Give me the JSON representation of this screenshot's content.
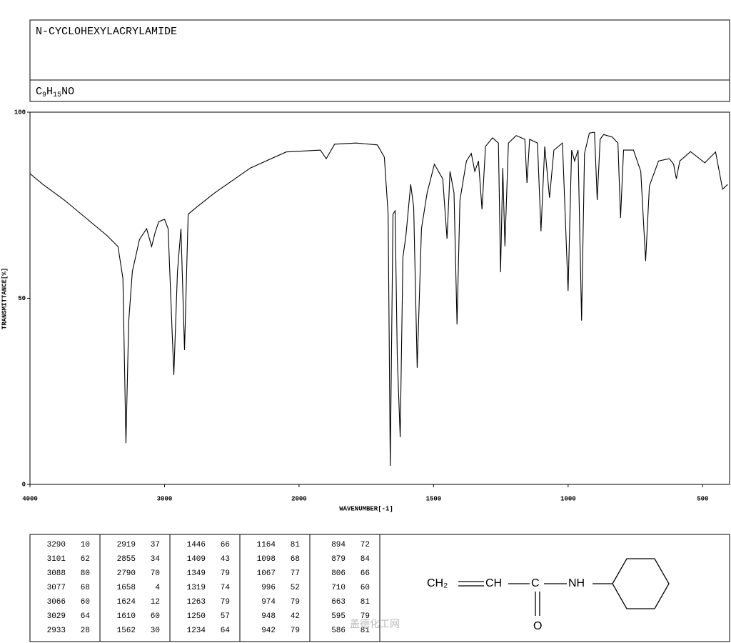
{
  "header": {
    "name": "N-CYCLOHEXYLACRYLAMIDE",
    "formula": [
      "C",
      "9",
      "H",
      "15",
      "NO"
    ]
  },
  "chart_data": {
    "type": "line",
    "x_label": "WAVENUMBER[-1]",
    "y_label": "TRANSMITTANCE[%]",
    "xlim": [
      4000,
      400
    ],
    "ylim": [
      0,
      100
    ],
    "xticks": [
      4000,
      3000,
      2000,
      1500,
      1000,
      500
    ],
    "yticks": [
      0,
      50,
      100
    ],
    "color": "#000000",
    "x": [
      4000,
      3904,
      3745,
      3585,
      3426,
      3346,
      3309,
      3287,
      3266,
      3239,
      3186,
      3133,
      3096,
      3069,
      3043,
      3000,
      2973,
      2931,
      2904,
      2878,
      2851,
      2824,
      2761,
      2628,
      2362,
      2096,
      1921,
      1899,
      1868,
      1788,
      1709,
      1683,
      1669,
      1661,
      1651,
      1643,
      1635,
      1624,
      1614,
      1603,
      1585,
      1574,
      1561,
      1545,
      1524,
      1497,
      1466,
      1450,
      1439,
      1424,
      1413,
      1402,
      1378,
      1360,
      1347,
      1333,
      1320,
      1307,
      1281,
      1259,
      1251,
      1243,
      1235,
      1222,
      1193,
      1161,
      1153,
      1143,
      1114,
      1101,
      1087,
      1069,
      1053,
      1021,
      1000,
      987,
      976,
      963,
      950,
      939,
      921,
      902,
      892,
      881,
      868,
      836,
      815,
      805,
      794,
      757,
      730,
      712,
      698,
      664,
      624,
      608,
      598,
      585,
      545,
      492,
      452,
      426,
      407
    ],
    "values": [
      83.5,
      80.6,
      76.4,
      71.6,
      66.8,
      63.9,
      55.3,
      11.1,
      43.8,
      57.2,
      65.8,
      68.7,
      63.9,
      67.8,
      70.6,
      71.2,
      68.7,
      29.4,
      57.2,
      68.7,
      36.1,
      72.6,
      74.5,
      78.3,
      85.0,
      89.3,
      89.8,
      87.5,
      91.4,
      91.7,
      91.2,
      87.9,
      72.6,
      5.0,
      72.6,
      73.5,
      34.2,
      12.7,
      61.0,
      66.8,
      80.6,
      74.5,
      31.3,
      68.7,
      78.3,
      86.0,
      82.1,
      66.0,
      84.1,
      78.3,
      43.0,
      76.4,
      86.9,
      88.9,
      84.1,
      86.9,
      73.9,
      90.8,
      93.1,
      91.7,
      57.0,
      85.0,
      64.0,
      91.7,
      93.7,
      92.7,
      81.0,
      92.7,
      91.7,
      68.0,
      90.8,
      77.0,
      89.8,
      91.7,
      52.0,
      89.8,
      86.9,
      89.8,
      44.0,
      88.9,
      94.4,
      94.6,
      76.4,
      92.7,
      94.0,
      93.3,
      91.7,
      71.6,
      89.8,
      89.8,
      84.1,
      60.0,
      80.2,
      86.9,
      87.5,
      86.0,
      82.1,
      86.9,
      89.4,
      86.4,
      89.3,
      79.3,
      80.6
    ]
  },
  "peak_table": [
    [
      [
        "3290",
        "10"
      ],
      [
        "3101",
        "62"
      ],
      [
        "3088",
        "80"
      ],
      [
        "3077",
        "68"
      ],
      [
        "3066",
        "60"
      ],
      [
        "3029",
        "64"
      ],
      [
        "2933",
        "28"
      ]
    ],
    [
      [
        "2919",
        "37"
      ],
      [
        "2855",
        "34"
      ],
      [
        "2790",
        "70"
      ],
      [
        "1658",
        "4"
      ],
      [
        "1624",
        "12"
      ],
      [
        "1610",
        "60"
      ],
      [
        "1562",
        "30"
      ]
    ],
    [
      [
        "1446",
        "66"
      ],
      [
        "1409",
        "43"
      ],
      [
        "1349",
        "79"
      ],
      [
        "1319",
        "74"
      ],
      [
        "1263",
        "79"
      ],
      [
        "1250",
        "57"
      ],
      [
        "1234",
        "64"
      ]
    ],
    [
      [
        "1164",
        "81"
      ],
      [
        "1098",
        "68"
      ],
      [
        "1067",
        "77"
      ],
      [
        "996",
        "52"
      ],
      [
        "974",
        "79"
      ],
      [
        "948",
        "42"
      ],
      [
        "942",
        "79"
      ]
    ],
    [
      [
        "894",
        "72"
      ],
      [
        "879",
        "84"
      ],
      [
        "806",
        "66"
      ],
      [
        "710",
        "60"
      ],
      [
        "663",
        "81"
      ],
      [
        "595",
        "79"
      ],
      [
        "586",
        "81"
      ]
    ]
  ],
  "structure": {
    "groups": [
      "CH₂",
      "CH",
      "C",
      "NH"
    ],
    "oxygen": "O"
  },
  "watermark": "盖德化工网"
}
